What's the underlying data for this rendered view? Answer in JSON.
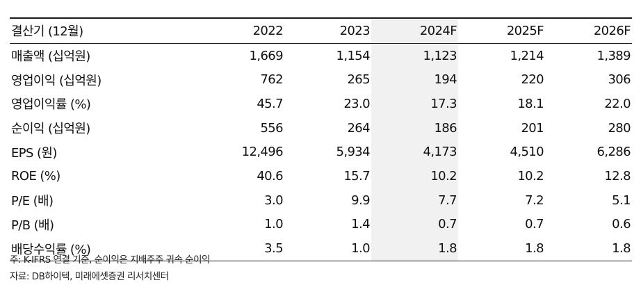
{
  "table": {
    "header": {
      "label": "결산기 (12월)",
      "years": [
        "2022",
        "2023",
        "2024F",
        "2025F",
        "2026F"
      ]
    },
    "rows": [
      {
        "label": "매출액 (십억원)",
        "values": [
          "1,669",
          "1,154",
          "1,123",
          "1,214",
          "1,389"
        ]
      },
      {
        "label": "영업이익 (십억원)",
        "values": [
          "762",
          "265",
          "194",
          "220",
          "306"
        ]
      },
      {
        "label": "영업이익률 (%)",
        "values": [
          "45.7",
          "23.0",
          "17.3",
          "18.1",
          "22.0"
        ]
      },
      {
        "label": "순이익 (십억원)",
        "values": [
          "556",
          "264",
          "186",
          "201",
          "280"
        ]
      },
      {
        "label": "EPS (원)",
        "values": [
          "12,496",
          "5,934",
          "4,173",
          "4,510",
          "6,286"
        ]
      },
      {
        "label": "ROE (%)",
        "values": [
          "40.6",
          "15.7",
          "10.2",
          "10.2",
          "12.8"
        ]
      },
      {
        "label": "P/E (배)",
        "values": [
          "3.0",
          "9.9",
          "7.7",
          "7.2",
          "5.1"
        ]
      },
      {
        "label": "P/B (배)",
        "values": [
          "1.0",
          "1.4",
          "0.7",
          "0.7",
          "0.6"
        ]
      },
      {
        "label": "배당수익률 (%)",
        "values": [
          "3.5",
          "1.0",
          "1.8",
          "1.8",
          "1.8"
        ]
      }
    ],
    "highlight_color": "#f1f1f1"
  },
  "notes": {
    "note": "주: K-IFRS 연결 기준, 순이익은 지배주주 귀속 순이익",
    "source": "자료: DB하이텍, 미래에셋증권 리서치센터"
  }
}
